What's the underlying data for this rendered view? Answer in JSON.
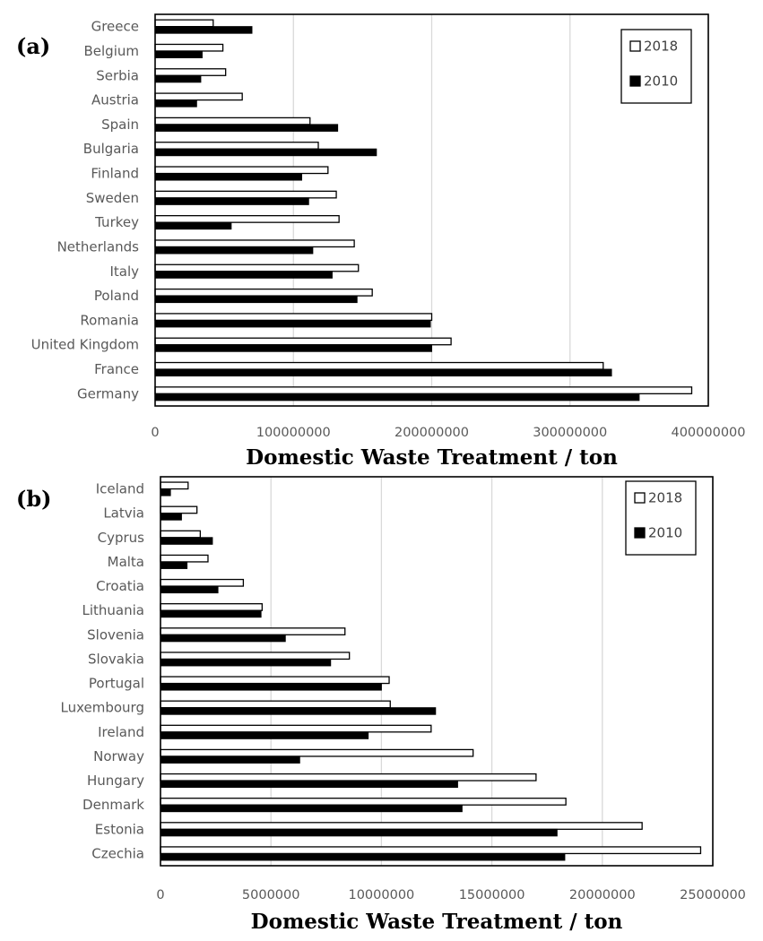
{
  "chart_data": [
    {
      "type": "bar",
      "orientation": "horizontal",
      "panel_label": "(a)",
      "categories": [
        "Greece",
        "Belgium",
        "Serbia",
        "Austria",
        "Spain",
        "Bulgaria",
        "Finland",
        "Sweden",
        "Turkey",
        "Netherlands",
        "Italy",
        "Poland",
        "Romania",
        "United Kingdom",
        "France",
        "Germany"
      ],
      "series": [
        {
          "name": "2018",
          "values": [
            42000000,
            49000000,
            51000000,
            63000000,
            112000000,
            118000000,
            125000000,
            131000000,
            133000000,
            144000000,
            147000000,
            157000000,
            200000000,
            214000000,
            324000000,
            388000000
          ]
        },
        {
          "name": "2010",
          "values": [
            70000000,
            34000000,
            33000000,
            30000000,
            132000000,
            160000000,
            106000000,
            111000000,
            55000000,
            114000000,
            128000000,
            146000000,
            199000000,
            200000000,
            330000000,
            350000000
          ]
        }
      ],
      "xlim": [
        0,
        400000000
      ],
      "xticks": [
        "0",
        "100000000",
        "200000000",
        "300000000",
        "400000000"
      ],
      "xlabel": "Domestic Waste Treatment / ton",
      "ylabel": "",
      "legend": [
        "2018",
        "2010"
      ],
      "legend_position": "top-right",
      "grid": "vertical"
    },
    {
      "type": "bar",
      "orientation": "horizontal",
      "panel_label": "(b)",
      "categories": [
        "Iceland",
        "Latvia",
        "Cyprus",
        "Malta",
        "Croatia",
        "Lithuania",
        "Slovenia",
        "Slovakia",
        "Portugal",
        "Luxembourg",
        "Ireland",
        "Norway",
        "Hungary",
        "Denmark",
        "Estonia",
        "Czechia"
      ],
      "series": [
        {
          "name": "2018",
          "values": [
            1250000,
            1650000,
            1800000,
            2150000,
            3750000,
            4600000,
            8350000,
            8550000,
            10350000,
            10400000,
            12250000,
            14150000,
            17000000,
            18350000,
            21800000,
            24450000
          ]
        },
        {
          "name": "2010",
          "values": [
            450000,
            950000,
            2350000,
            1200000,
            2600000,
            4550000,
            5650000,
            7700000,
            10000000,
            12450000,
            9400000,
            6300000,
            13450000,
            13650000,
            17950000,
            18300000
          ]
        }
      ],
      "xlim": [
        0,
        25000000
      ],
      "xticks": [
        "0",
        "5000000",
        "10000000",
        "15000000",
        "20000000",
        "25000000"
      ],
      "xlabel": "Domestic Waste Treatment / ton",
      "ylabel": "",
      "legend": [
        "2018",
        "2010"
      ],
      "legend_position": "top-right",
      "grid": "vertical"
    }
  ]
}
